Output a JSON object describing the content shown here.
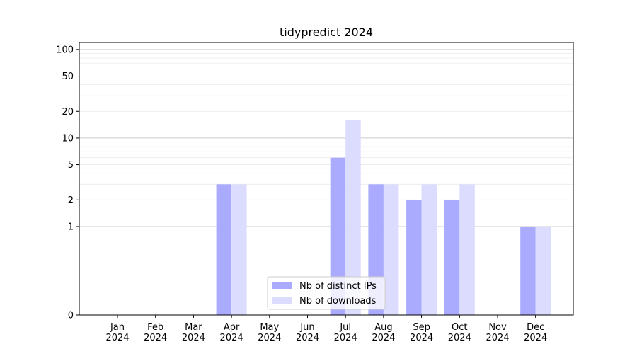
{
  "chart_data": {
    "type": "bar",
    "title": "tidypredict 2024",
    "xlabel": "",
    "ylabel": "",
    "yscale": "symlog",
    "ylim": [
      0,
      120
    ],
    "yticks": [
      0,
      1,
      2,
      5,
      10,
      20,
      50,
      100
    ],
    "grid": true,
    "legend_position": "lower-center",
    "categories": [
      "Jan\n2024",
      "Feb\n2024",
      "Mar\n2024",
      "Apr\n2024",
      "May\n2024",
      "Jun\n2024",
      "Jul\n2024",
      "Aug\n2024",
      "Sep\n2024",
      "Oct\n2024",
      "Nov\n2024",
      "Dec\n2024"
    ],
    "series": [
      {
        "name": "Nb of distinct IPs",
        "color": "#aaaaff",
        "values": [
          0,
          0,
          0,
          3,
          0,
          0,
          6,
          3,
          2,
          2,
          0,
          1
        ]
      },
      {
        "name": "Nb of downloads",
        "color": "#dcdcfe",
        "values": [
          0,
          0,
          0,
          3,
          0,
          0,
          16,
          3,
          3,
          3,
          0,
          1
        ]
      }
    ]
  }
}
